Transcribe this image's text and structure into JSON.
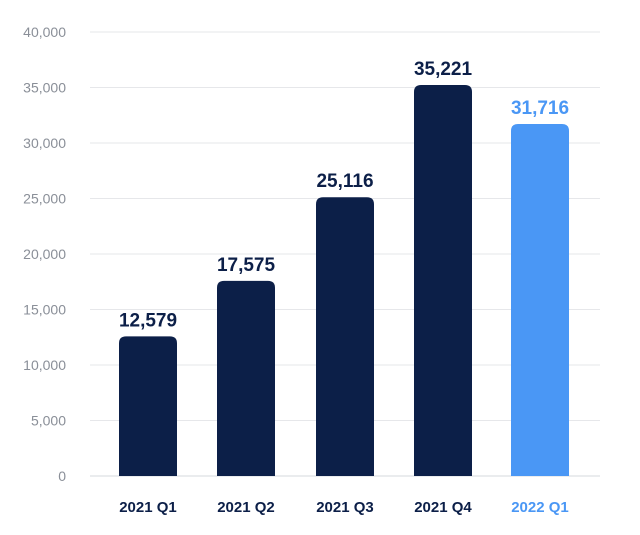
{
  "colors": {
    "default_bar": "#0c1f48",
    "highlight_bar": "#4a97f5",
    "default_label": "#0c1f48",
    "highlight_label": "#4a97f5",
    "tick_label": "#8a8f98",
    "grid": "#e6e7ea"
  },
  "chart_data": {
    "type": "bar",
    "title": "",
    "xlabel": "",
    "ylabel": "",
    "categories": [
      "2021 Q1",
      "2021 Q2",
      "2021 Q3",
      "2021 Q4",
      "2022 Q1"
    ],
    "values": [
      12579,
      17575,
      25116,
      35221,
      31716
    ],
    "value_labels": [
      "12,579",
      "17,575",
      "25,116",
      "35,221",
      "31,716"
    ],
    "highlight": [
      false,
      false,
      false,
      false,
      true
    ],
    "ylim": [
      0,
      40000
    ],
    "yticks": [
      0,
      5000,
      10000,
      15000,
      20000,
      25000,
      30000,
      35000,
      40000
    ],
    "ytick_labels": [
      "0",
      "5,000",
      "10,000",
      "15,000",
      "20,000",
      "25,000",
      "30,000",
      "35,000",
      "40,000"
    ],
    "grid": true,
    "legend": "none"
  }
}
